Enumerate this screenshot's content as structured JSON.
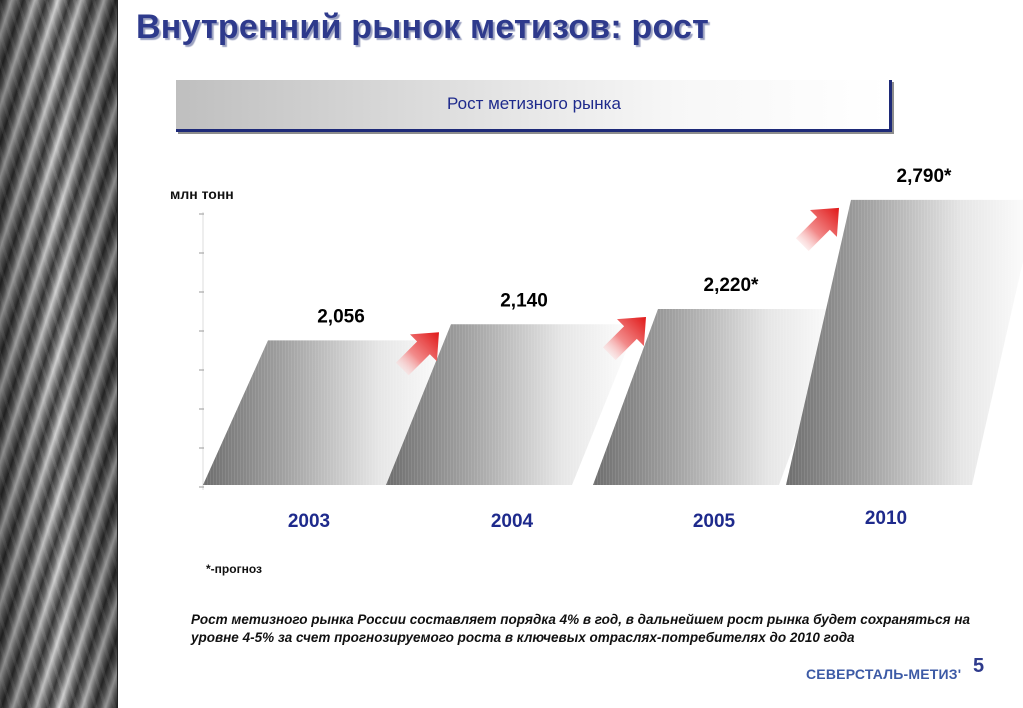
{
  "slide": {
    "title": "Внутренний рынок метизов: рост",
    "subtitle": "Рост метизного рынка",
    "footnote": "*-прогноз",
    "summary": "Рост метизного рынка  России составляет порядка 4% в год, в дальнейшем  рост рынка будет сохраняться на уровне 4-5% за счет прогнозируемого роста в ключевых отраслях-потребителях до 2010 года",
    "logo": "СЕВЕРСТАЛЬ-МЕТИЗ'",
    "page_number": "5"
  },
  "chart_data": {
    "type": "bar",
    "categories": [
      "2003",
      "2004",
      "2005",
      "2010"
    ],
    "values": [
      2.056,
      2.14,
      2.22,
      2.79
    ],
    "value_labels": [
      "2,056",
      "2,140",
      "2,220*",
      "2,790*"
    ],
    "ylabel": "млн тонн",
    "ylim": [
      1.3,
      2.8
    ],
    "grid": false,
    "legend": "none",
    "colors": {
      "bar_dark": "#7a7a7a",
      "bar_light": "#ffffff",
      "arrow": "#e01818",
      "category": "#1e2a8c"
    }
  }
}
